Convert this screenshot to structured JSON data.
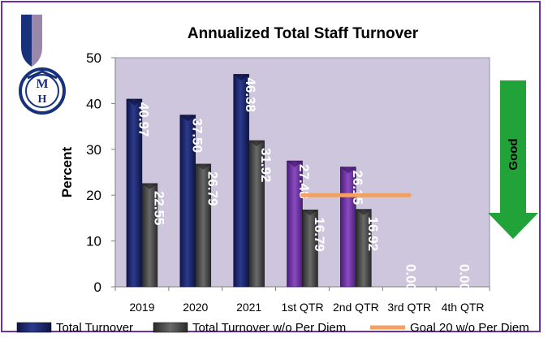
{
  "chart_data": {
    "type": "bar",
    "title": "Annualized Total Staff Turnover",
    "xlabel": "",
    "ylabel": "Percent",
    "ylim": [
      0,
      50
    ],
    "yticks": [
      0,
      10,
      20,
      30,
      40,
      50
    ],
    "grid": false,
    "categories": [
      "2019",
      "2020",
      "2021",
      "1st QTR",
      "2nd QTR",
      "3rd QTR",
      "4th QTR"
    ],
    "series": [
      {
        "name": "Total Turnover",
        "values": [
          40.97,
          37.5,
          46.38,
          27.48,
          26.15,
          0.0,
          0.0
        ],
        "labels": [
          "40.97",
          "37.50",
          "46.38",
          "27.48",
          "26.15",
          "0.00",
          "0.00"
        ],
        "color": "#1f2a6b",
        "quarter_color": "#6a2c9e"
      },
      {
        "name": "Total Turnover w/o Per Diem",
        "values": [
          22.55,
          26.79,
          31.92,
          16.79,
          16.92,
          0,
          0
        ],
        "labels": [
          "22.55",
          "26.79",
          "31.92",
          "16.79",
          "16.92",
          "",
          ""
        ],
        "color": "#4a4a4a"
      }
    ],
    "goal": {
      "name": "Goal 20 w/o Per Diem",
      "value": 20,
      "from_category": "1st QTR",
      "to_category": "3rd QTR",
      "color": "#f2a063"
    },
    "annotation": {
      "text": "Good",
      "direction": "down",
      "color": "#22a33a"
    },
    "legend_position": "bottom"
  }
}
